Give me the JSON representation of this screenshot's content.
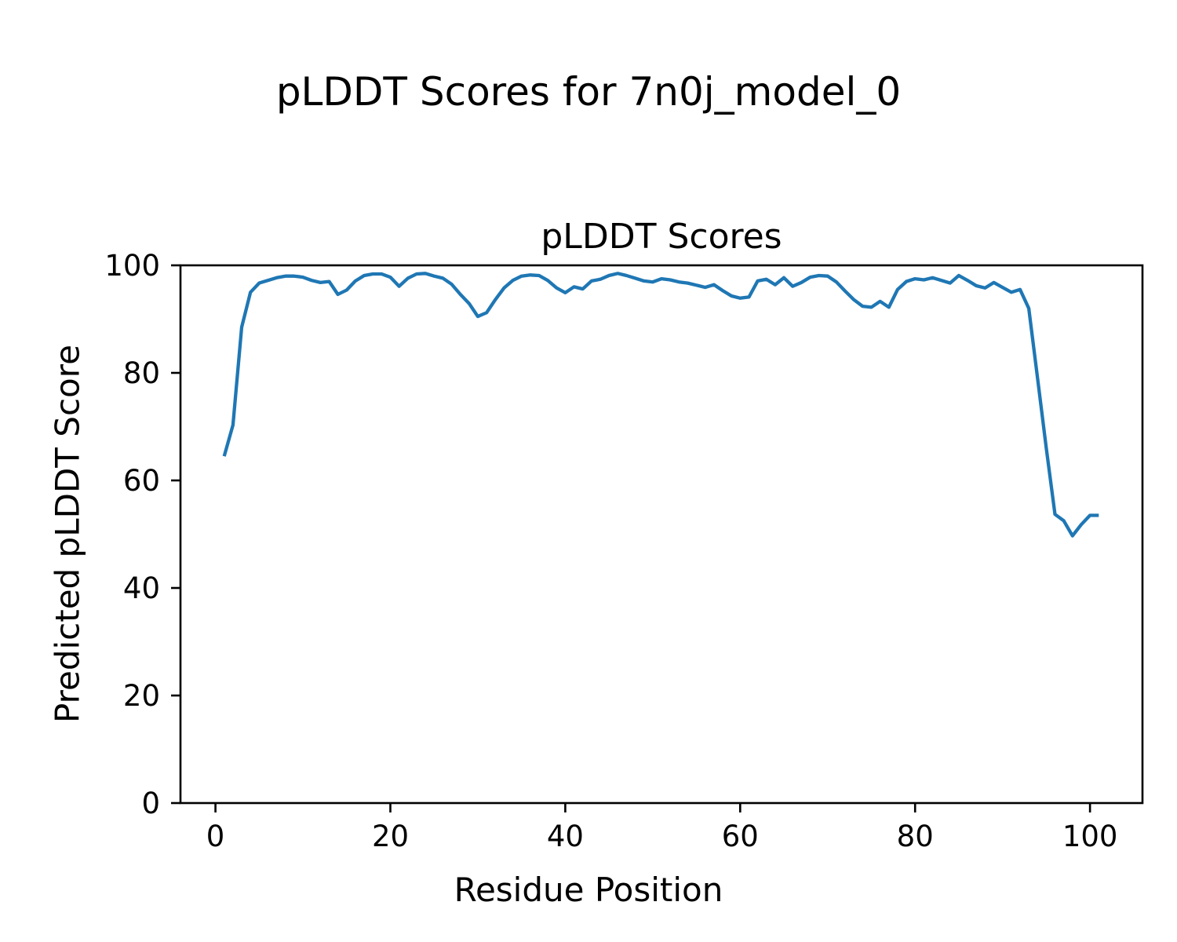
{
  "figure": {
    "title": "pLDDT Scores for 7n0j_model_0",
    "background_color": "#ffffff",
    "text_color": "#000000"
  },
  "chart_data": {
    "type": "line",
    "title": "pLDDT Scores",
    "xlabel": "Residue Position",
    "ylabel": "Predicted pLDDT Score",
    "xlim": [
      -4,
      106
    ],
    "ylim": [
      0,
      100
    ],
    "xticks": [
      0,
      20,
      40,
      60,
      80,
      100
    ],
    "yticks": [
      0,
      20,
      40,
      60,
      80,
      100
    ],
    "grid": false,
    "legend_position": "none",
    "line_color": "#1f77b4",
    "line_width": 4.3,
    "frame_color": "#000000",
    "series": [
      {
        "name": "pLDDT",
        "x": [
          1,
          2,
          3,
          4,
          5,
          6,
          7,
          8,
          9,
          10,
          11,
          12,
          13,
          14,
          15,
          16,
          17,
          18,
          19,
          20,
          21,
          22,
          23,
          24,
          25,
          26,
          27,
          28,
          29,
          30,
          31,
          32,
          33,
          34,
          35,
          36,
          37,
          38,
          39,
          40,
          41,
          42,
          43,
          44,
          45,
          46,
          47,
          48,
          49,
          50,
          51,
          52,
          53,
          54,
          55,
          56,
          57,
          58,
          59,
          60,
          61,
          62,
          63,
          64,
          65,
          66,
          67,
          68,
          69,
          70,
          71,
          72,
          73,
          74,
          75,
          76,
          77,
          78,
          79,
          80,
          81,
          82,
          83,
          84,
          85,
          86,
          87,
          88,
          89,
          90,
          91,
          92,
          93,
          94,
          95,
          96,
          97,
          98,
          99,
          100,
          101
        ],
        "y": [
          64.5,
          70.3,
          88.5,
          95.0,
          96.7,
          97.2,
          97.7,
          98.0,
          98.0,
          97.8,
          97.2,
          96.8,
          97.0,
          94.6,
          95.4,
          97.1,
          98.1,
          98.4,
          98.4,
          97.8,
          96.1,
          97.6,
          98.4,
          98.5,
          98.0,
          97.6,
          96.5,
          94.6,
          92.9,
          90.5,
          91.2,
          93.6,
          95.8,
          97.2,
          98.0,
          98.2,
          98.1,
          97.2,
          95.8,
          94.9,
          96.0,
          95.6,
          97.1,
          97.4,
          98.1,
          98.5,
          98.1,
          97.6,
          97.1,
          96.9,
          97.5,
          97.3,
          96.9,
          96.7,
          96.3,
          95.9,
          96.4,
          95.3,
          94.3,
          93.9,
          94.1,
          97.1,
          97.4,
          96.4,
          97.7,
          96.1,
          96.8,
          97.8,
          98.1,
          98.0,
          96.9,
          95.2,
          93.6,
          92.4,
          92.2,
          93.3,
          92.2,
          95.5,
          97.0,
          97.5,
          97.3,
          97.7,
          97.2,
          96.7,
          98.1,
          97.2,
          96.2,
          95.8,
          96.8,
          95.9,
          95.0,
          95.5,
          92.0,
          79.0,
          66.0,
          53.7,
          52.5,
          49.7,
          51.8,
          53.5,
          53.5
        ]
      }
    ]
  }
}
